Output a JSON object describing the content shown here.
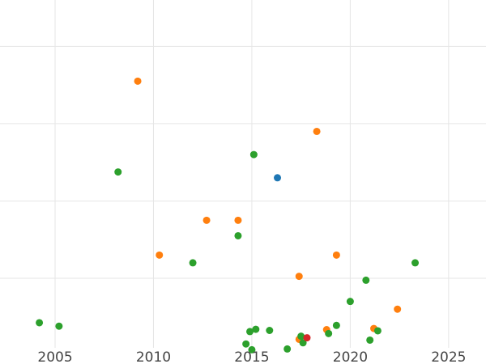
{
  "chart_data": {
    "type": "scatter",
    "title": "",
    "xlabel": "",
    "ylabel": "",
    "xlim": [
      2002.2,
      2026.9
    ],
    "ylim": [
      0,
      9
    ],
    "x_ticks": [
      2005,
      2010,
      2015,
      2020,
      2025
    ],
    "x_tick_labels": [
      "2005",
      "2010",
      "2015",
      "2020",
      "2025"
    ],
    "y_gridlines": [
      1.8,
      3.8,
      5.8,
      7.8
    ],
    "grid": true,
    "legend": "none",
    "series": [
      {
        "color": "#ff7f0e",
        "points": [
          {
            "x": 2009.2,
            "y": 6.9
          },
          {
            "x": 2018.3,
            "y": 5.6
          },
          {
            "x": 2012.7,
            "y": 3.3
          },
          {
            "x": 2014.3,
            "y": 3.3
          },
          {
            "x": 2010.3,
            "y": 2.4
          },
          {
            "x": 2019.3,
            "y": 2.4
          },
          {
            "x": 2017.4,
            "y": 1.85
          },
          {
            "x": 2022.4,
            "y": 1.0
          },
          {
            "x": 2018.8,
            "y": 0.47
          },
          {
            "x": 2021.2,
            "y": 0.5
          },
          {
            "x": 2017.4,
            "y": 0.22
          }
        ]
      },
      {
        "color": "#2ca02c",
        "points": [
          {
            "x": 2015.1,
            "y": 5.0
          },
          {
            "x": 2008.2,
            "y": 4.55
          },
          {
            "x": 2014.3,
            "y": 2.9
          },
          {
            "x": 2012.0,
            "y": 2.2
          },
          {
            "x": 2023.3,
            "y": 2.2
          },
          {
            "x": 2020.8,
            "y": 1.75
          },
          {
            "x": 2020.0,
            "y": 1.2
          },
          {
            "x": 2004.2,
            "y": 0.65
          },
          {
            "x": 2005.2,
            "y": 0.56
          },
          {
            "x": 2019.3,
            "y": 0.58
          },
          {
            "x": 2015.2,
            "y": 0.48
          },
          {
            "x": 2014.9,
            "y": 0.42
          },
          {
            "x": 2015.9,
            "y": 0.45
          },
          {
            "x": 2017.5,
            "y": 0.3
          },
          {
            "x": 2018.9,
            "y": 0.37
          },
          {
            "x": 2021.4,
            "y": 0.44
          },
          {
            "x": 2021.0,
            "y": 0.2
          },
          {
            "x": 2017.6,
            "y": 0.13
          },
          {
            "x": 2014.7,
            "y": 0.1
          },
          {
            "x": 2015.0,
            "y": -0.05
          },
          {
            "x": 2016.8,
            "y": -0.03
          }
        ]
      },
      {
        "color": "#1f77b4",
        "points": [
          {
            "x": 2016.3,
            "y": 4.4
          }
        ]
      },
      {
        "color": "#d62728",
        "points": [
          {
            "x": 2017.8,
            "y": 0.26
          }
        ]
      }
    ]
  }
}
